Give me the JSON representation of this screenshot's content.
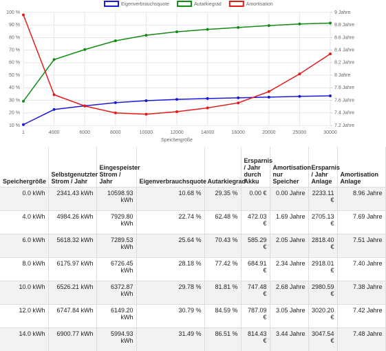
{
  "chart_data": {
    "type": "line",
    "x_label": "Speichergröße",
    "categories": [
      "1",
      "4000",
      "6000",
      "8000",
      "10000",
      "12000",
      "14000",
      "16000",
      "20000",
      "25000",
      "30000"
    ],
    "series": [
      {
        "name": "Eigenverbrauchsquote",
        "color": "#1a1adb",
        "values": [
          10.68,
          22.74,
          25.64,
          28.18,
          29.78,
          30.79,
          31.49,
          32.0,
          32.6,
          33.2,
          33.6
        ]
      },
      {
        "name": "Autarkiegrad",
        "color": "#138a13",
        "values": [
          29.35,
          62.48,
          70.43,
          77.42,
          81.81,
          84.59,
          86.51,
          88.0,
          89.5,
          90.8,
          91.5
        ]
      },
      {
        "name": "Amortisation",
        "color": "#e41a1a",
        "axis": "y2",
        "values": [
          8.96,
          7.69,
          7.51,
          7.4,
          7.38,
          7.42,
          7.48,
          7.56,
          7.74,
          8.02,
          8.34
        ]
      }
    ],
    "ylim": [
      10,
      100
    ],
    "yticks": [
      {
        "value": 10,
        "label": "10 %"
      },
      {
        "value": 20,
        "label": "20 %"
      },
      {
        "value": 30,
        "label": "30 %"
      },
      {
        "value": 40,
        "label": "40 %"
      },
      {
        "value": 50,
        "label": "50 %"
      },
      {
        "value": 60,
        "label": "60 %"
      },
      {
        "value": 70,
        "label": "70 %"
      },
      {
        "value": 80,
        "label": "80 %"
      },
      {
        "value": 90,
        "label": "90 %"
      },
      {
        "value": 100,
        "label": "100 %"
      }
    ],
    "y2lim": [
      7.2,
      9
    ],
    "y2ticks": [
      {
        "value": 7.2,
        "label": "7.2 Jahre"
      },
      {
        "value": 7.4,
        "label": "7.4 Jahre"
      },
      {
        "value": 7.6,
        "label": "7.6 Jahre"
      },
      {
        "value": 7.8,
        "label": "7.8 Jahre"
      },
      {
        "value": 8,
        "label": "8 Jahre"
      },
      {
        "value": 8.2,
        "label": "8.2 Jahre"
      },
      {
        "value": 8.4,
        "label": "8.4 Jahre"
      },
      {
        "value": 8.6,
        "label": "8.6 Jahre"
      },
      {
        "value": 8.8,
        "label": "8.8 Jahre"
      },
      {
        "value": 9,
        "label": "9 Jahre"
      }
    ],
    "grid": true
  },
  "table": {
    "header": [
      "Speichergröße",
      "Selbstgenutzter Strom / Jahr",
      "Eingespeister Strom / Jahr",
      "Eigenverbrauchsquote",
      "Autarkiegrad",
      "Ersparnis / Jahr durch Akku",
      "Amortisation nur Speicher",
      "Ersparnis / Jahr Anlage",
      "Amortisation Anlage"
    ],
    "rows": [
      [
        "0.0 kWh",
        "2341.43 kWh",
        "10598.93 kWh",
        "10.68 %",
        "29.35 %",
        "0.00 €",
        "0.00 Jahre",
        "2233.11 €",
        "8.96 Jahre"
      ],
      [
        "4.0 kWh",
        "4984.26 kWh",
        "7929.80 kWh",
        "22.74 %",
        "62.48 %",
        "472.03 €",
        "1.69 Jahre",
        "2705.13 €",
        "7.69 Jahre"
      ],
      [
        "6.0 kWh",
        "5618.32 kWh",
        "7289.53 kWh",
        "25.64 %",
        "70.43 %",
        "585.29 €",
        "2.05 Jahre",
        "2818.40 €",
        "7.51 Jahre"
      ],
      [
        "8.0 kWh",
        "6175.97 kWh",
        "6726.45 kWh",
        "28.18 %",
        "77.42 %",
        "684.91 €",
        "2.34 Jahre",
        "2918.01 €",
        "7.40 Jahre"
      ],
      [
        "10.0 kWh",
        "6526.21 kWh",
        "6372.87 kWh",
        "29.78 %",
        "81.81 %",
        "747.48 €",
        "2.68 Jahre",
        "2980.59 €",
        "7.38 Jahre"
      ],
      [
        "12.0 kWh",
        "6747.84 kWh",
        "6149.20 kWh",
        "30.79 %",
        "84.59 %",
        "787.09 €",
        "3.05 Jahre",
        "3020.20 €",
        "7.42 Jahre"
      ],
      [
        "14.0 kWh",
        "6900.77 kWh",
        "5994.93 kWh",
        "31.49 %",
        "86.51 %",
        "814.43 €",
        "3.44 Jahre",
        "3047.54 €",
        "7.48 Jahre"
      ]
    ]
  }
}
